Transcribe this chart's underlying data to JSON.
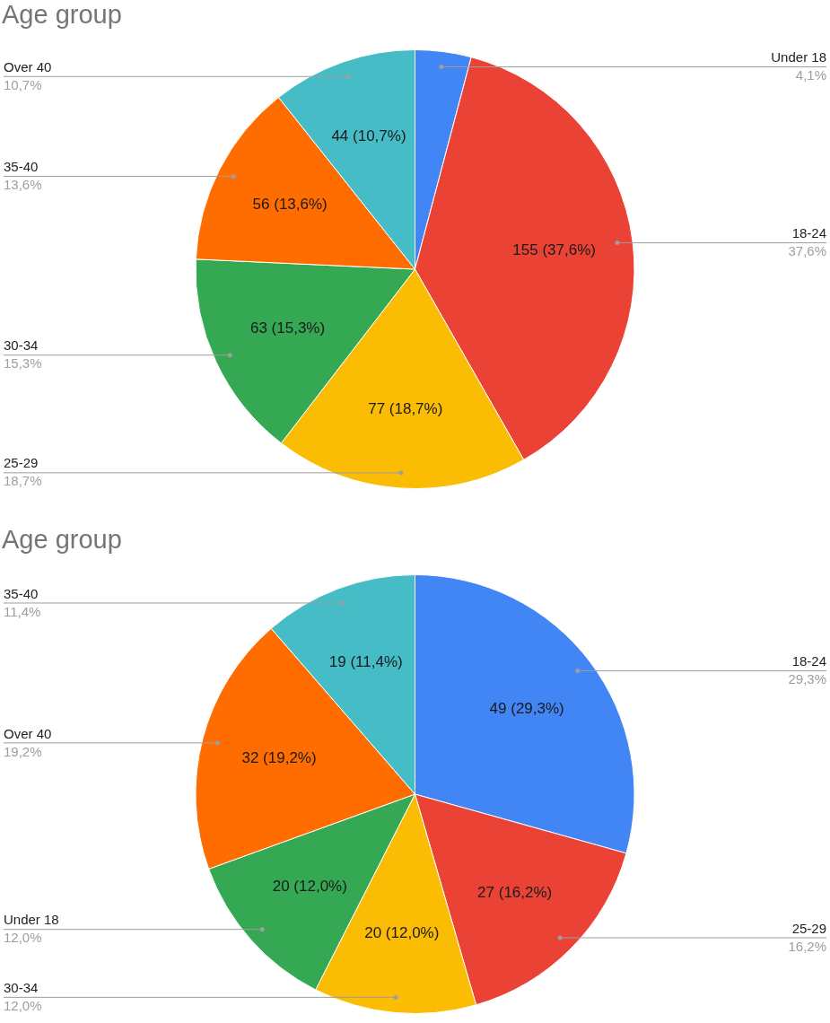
{
  "chart_data": [
    {
      "type": "pie",
      "title": "Age group",
      "categories": [
        "Under 18",
        "18-24",
        "25-29",
        "30-34",
        "35-40",
        "Over 40"
      ],
      "values": [
        17,
        155,
        77,
        63,
        56,
        44
      ],
      "colors": [
        "#4285f4",
        "#ea4335",
        "#fbbc04",
        "#34a853",
        "#ff6d01",
        "#46bdc6"
      ],
      "value_labels": [
        null,
        "155 (37,6%)",
        "77 (18,7%)",
        "63 (15,3%)",
        "56 (13,6%)",
        "44 (10,7%)"
      ],
      "annotations": [
        {
          "text": "4,1%",
          "x": "Under 18"
        },
        {
          "text": "37,6%",
          "x": "18-24"
        },
        {
          "text": "18,7%",
          "x": "25-29"
        },
        {
          "text": "15,3%",
          "x": "30-34"
        },
        {
          "text": "13,6%",
          "x": "35-40"
        },
        {
          "text": "10,7%",
          "x": "Over 40"
        }
      ]
    },
    {
      "type": "pie",
      "title": "Age group",
      "categories": [
        "18-24",
        "25-29",
        "30-34",
        "Under 18",
        "Over 40",
        "35-40"
      ],
      "values": [
        49,
        27,
        20,
        20,
        32,
        19
      ],
      "colors": [
        "#4285f4",
        "#ea4335",
        "#fbbc04",
        "#34a853",
        "#ff6d01",
        "#46bdc6"
      ],
      "value_labels": [
        "49 (29,3%)",
        "27 (16,2%)",
        "20 (12,0%)",
        "20 (12,0%)",
        "32 (19,2%)",
        "19 (11,4%)"
      ],
      "annotations": [
        {
          "text": "29,3%",
          "x": "18-24"
        },
        {
          "text": "16,2%",
          "x": "25-29"
        },
        {
          "text": "12,0%",
          "x": "30-34"
        },
        {
          "text": "12,0%",
          "x": "Under 18"
        },
        {
          "text": "19,2%",
          "x": "Over 40"
        },
        {
          "text": "11,4%",
          "x": "35-40"
        }
      ]
    }
  ]
}
